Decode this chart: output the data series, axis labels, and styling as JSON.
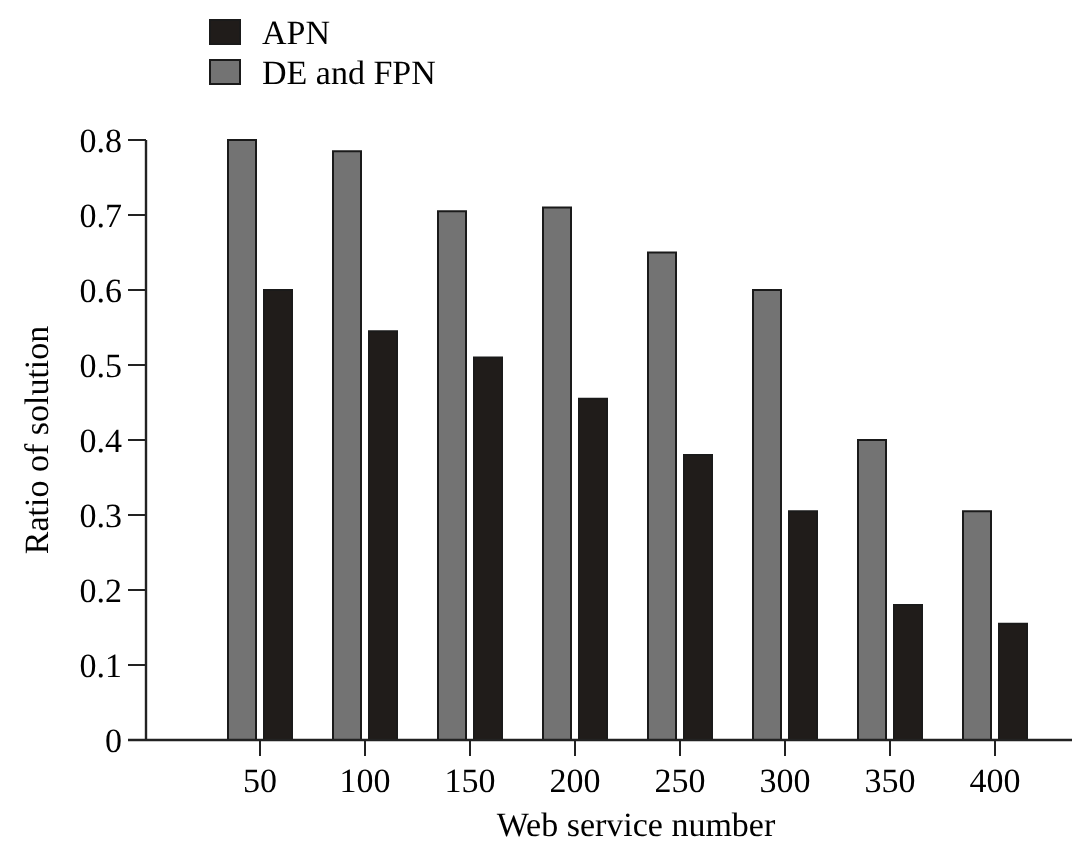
{
  "chart_data": {
    "type": "bar",
    "xlabel": "Web service number",
    "ylabel": "Ratio of solution",
    "categories": [
      "50",
      "100",
      "150",
      "200",
      "250",
      "300",
      "350",
      "400"
    ],
    "series": [
      {
        "name": "APN",
        "color": "#201c1a",
        "values": [
          0.6,
          0.545,
          0.51,
          0.455,
          0.38,
          0.305,
          0.18,
          0.155
        ]
      },
      {
        "name": "DE and FPN",
        "color": "#737373",
        "values": [
          0.8,
          0.785,
          0.705,
          0.71,
          0.65,
          0.6,
          0.4,
          0.305
        ]
      }
    ],
    "ylim": [
      0,
      0.8
    ],
    "yticks": [
      0,
      0.1,
      0.2,
      0.3,
      0.4,
      0.5,
      0.6,
      0.7,
      0.8
    ],
    "grid": false,
    "legend": "top left"
  }
}
